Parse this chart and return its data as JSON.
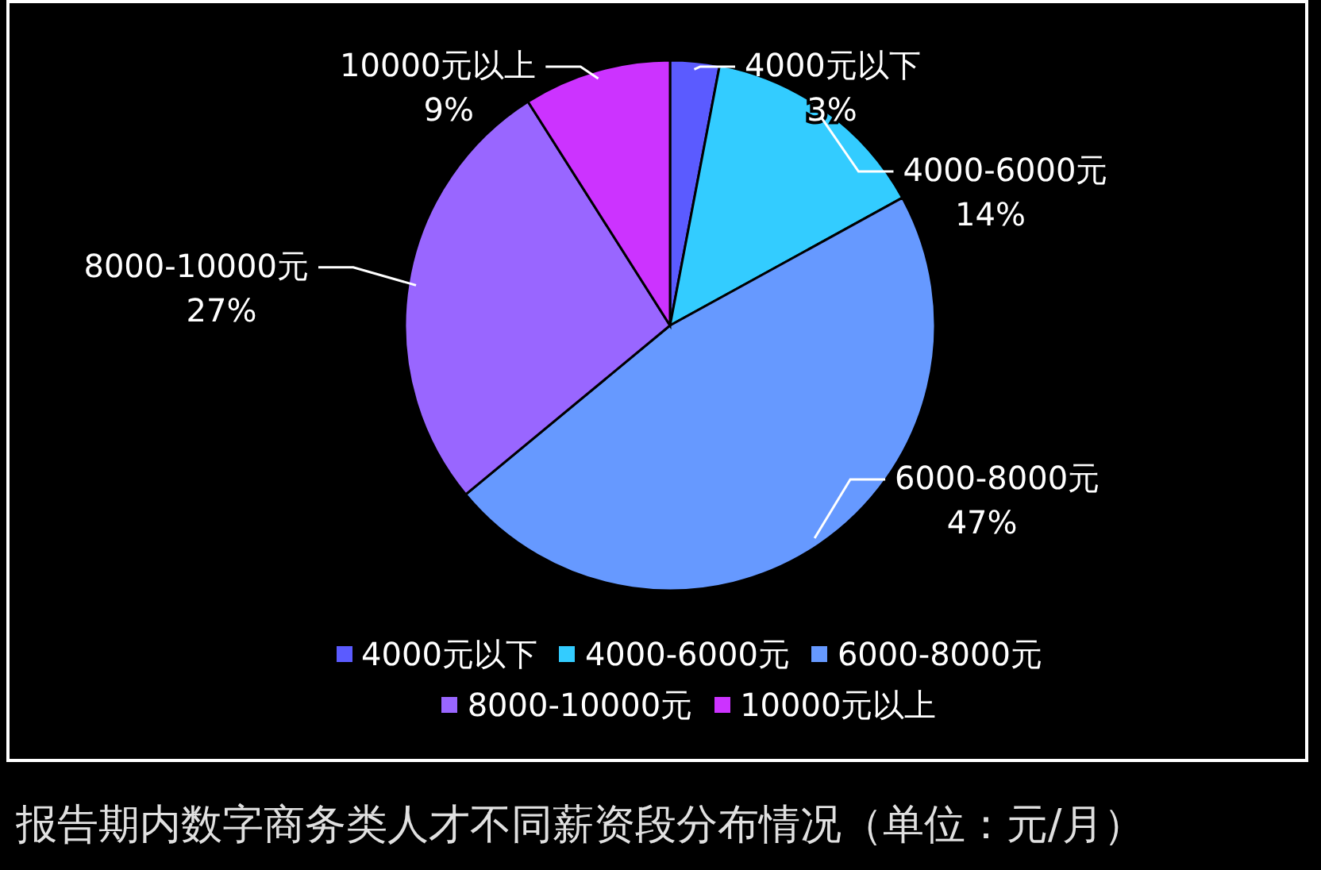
{
  "chart_data": {
    "type": "pie",
    "title": "报告期内数字商务类人才不同薪资段分布情况（单位：元/月）",
    "categories": [
      "4000元以下",
      "4000-6000元",
      "6000-8000元",
      "8000-10000元",
      "10000元以上"
    ],
    "values": [
      3,
      14,
      47,
      27,
      9
    ],
    "value_labels": [
      "3%",
      "14%",
      "47%",
      "27%",
      "9%"
    ],
    "colors": [
      "#5b5bff",
      "#33ccff",
      "#6699ff",
      "#9966ff",
      "#cc33ff"
    ],
    "legend": "bottom"
  }
}
